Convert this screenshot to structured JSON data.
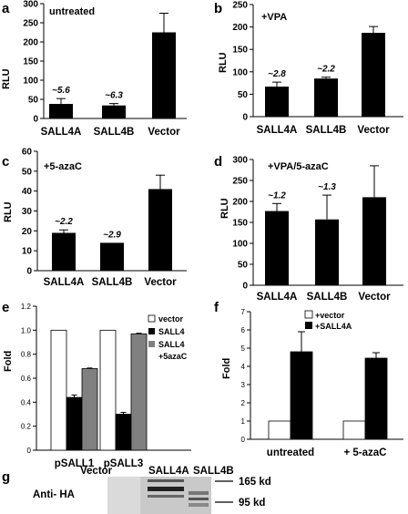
{
  "chart_data": [
    {
      "panel": "a",
      "type": "bar",
      "title": "untreated",
      "ylabel": "RLU",
      "ylim": [
        0,
        300
      ],
      "yticks": [
        0,
        50,
        100,
        150,
        200,
        250,
        300
      ],
      "categories": [
        "SALL4A",
        "SALL4B",
        "Vector"
      ],
      "values": [
        38,
        34,
        225
      ],
      "errors": [
        14,
        5,
        50
      ],
      "annotations": [
        "~5.6",
        "~6.3",
        ""
      ],
      "color": "#000000"
    },
    {
      "panel": "b",
      "type": "bar",
      "title": "+VPA",
      "ylabel": "RLU",
      "ylim": [
        0,
        250
      ],
      "yticks": [
        0,
        50,
        100,
        150,
        200,
        250
      ],
      "categories": [
        "SALL4A",
        "SALL4B",
        "Vector"
      ],
      "values": [
        67,
        85,
        187
      ],
      "errors": [
        10,
        3,
        14
      ],
      "annotations": [
        "~2.8",
        "~2.2",
        ""
      ],
      "color": "#000000"
    },
    {
      "panel": "c",
      "type": "bar",
      "title": "+5-azaC",
      "ylabel": "RLU",
      "ylim": [
        0,
        60
      ],
      "yticks": [
        0,
        10,
        20,
        30,
        40,
        50,
        60
      ],
      "categories": [
        "SALL4A",
        "SALL4B",
        "Vector"
      ],
      "values": [
        19,
        14,
        41
      ],
      "errors": [
        1.5,
        0,
        7
      ],
      "annotations": [
        "~2.2",
        "~2.9",
        ""
      ],
      "color": "#000000"
    },
    {
      "panel": "d",
      "type": "bar",
      "title": "+VPA/5-azaC",
      "ylabel": "RLU",
      "ylim": [
        0,
        300
      ],
      "yticks": [
        0,
        50,
        100,
        150,
        200,
        250,
        300
      ],
      "categories": [
        "SALL4A",
        "SALL4B",
        "Vector"
      ],
      "values": [
        177,
        157,
        210
      ],
      "errors": [
        18,
        58,
        75
      ],
      "annotations": [
        "~1.2",
        "~1.3",
        ""
      ],
      "color": "#000000"
    },
    {
      "panel": "e",
      "type": "bar",
      "ylabel": "Fold",
      "ylim": [
        0,
        1.2
      ],
      "yticks": [
        "0",
        "0.2",
        "0.4",
        "0.6",
        "0.8",
        "1.0",
        "1.2"
      ],
      "categories": [
        "pSALL1",
        "pSALL3"
      ],
      "series": [
        {
          "name": "vector",
          "values": [
            1.0,
            1.0
          ],
          "errors": [
            0,
            0
          ],
          "color": "#ffffff"
        },
        {
          "name": "SALL4",
          "values": [
            0.44,
            0.3
          ],
          "errors": [
            0.02,
            0.015
          ],
          "color": "#000000"
        },
        {
          "name": "SALL4 +5azaC",
          "values": [
            0.68,
            0.97
          ],
          "errors": [
            0.005,
            0.005
          ],
          "color": "#808080"
        }
      ],
      "legend": [
        "vector",
        "SALL4",
        "SALL4",
        "+5azaC"
      ],
      "legend_position": "right"
    },
    {
      "panel": "f",
      "type": "bar",
      "ylabel": "Fold",
      "ylim": [
        0,
        7
      ],
      "yticks": [
        0,
        1,
        2,
        3,
        4,
        5,
        6,
        7
      ],
      "categories": [
        "untreated",
        "+ 5-azaC"
      ],
      "series": [
        {
          "name": "+vector",
          "values": [
            1,
            1
          ],
          "errors": [
            0,
            0
          ],
          "color": "#ffffff"
        },
        {
          "name": "+SALL4A",
          "values": [
            4.8,
            4.45
          ],
          "errors": [
            1.1,
            0.3
          ],
          "color": "#000000"
        }
      ],
      "legend_position": "top-right"
    }
  ],
  "panel_g": {
    "label": "g",
    "lanes": [
      "Vector",
      "SALL4A",
      "SALL4B"
    ],
    "antibody": "Anti- HA",
    "markers": [
      "165 kd",
      "95 kd"
    ]
  }
}
